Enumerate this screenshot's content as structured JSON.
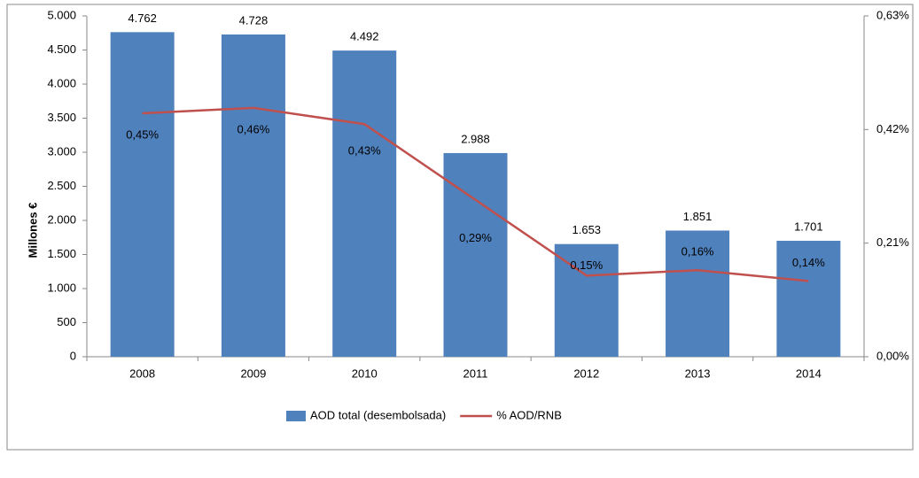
{
  "chart_data": {
    "type": "bar_line",
    "y_axis_label": "Millones €",
    "categories": [
      "2008",
      "2009",
      "2010",
      "2011",
      "2012",
      "2013",
      "2014"
    ],
    "series": [
      {
        "name": "AOD total (desembolsada)",
        "type": "bar",
        "color": "#4f81bd",
        "values": [
          4762,
          4728,
          4492,
          2988,
          1653,
          1851,
          1701
        ],
        "value_labels": [
          "4.762",
          "4.728",
          "4.492",
          "2.988",
          "1.653",
          "1.851",
          "1.701"
        ]
      },
      {
        "name": "% AOD/RNB",
        "type": "line",
        "axis": "y2",
        "color": "#c0504d",
        "values": [
          0.45,
          0.46,
          0.43,
          0.29,
          0.15,
          0.16,
          0.14
        ],
        "value_labels": [
          "0,45%",
          "0,46%",
          "0,43%",
          "0,29%",
          "0,15%",
          "0,16%",
          "0,14%"
        ]
      }
    ],
    "ylim": [
      0,
      5000
    ],
    "yticks": [
      0,
      500,
      {
        "value": 1000,
        "label": "1.000"
      },
      {
        "value": 1500,
        "label": "1.500"
      },
      {
        "value": 2000,
        "label": "2.000"
      },
      {
        "value": 2500,
        "label": "2.500"
      },
      {
        "value": 3000,
        "label": "3.000"
      },
      {
        "value": 3500,
        "label": "3.500"
      },
      {
        "value": 4000,
        "label": "4.000"
      },
      {
        "value": 4500,
        "label": "4.500"
      },
      {
        "value": 5000,
        "label": "5.000"
      }
    ],
    "y2lim": [
      0,
      0.63
    ],
    "y2ticks": [
      {
        "value": 0,
        "label": "0,00%"
      },
      {
        "value": 0.21,
        "label": "0,21%"
      },
      {
        "value": 0.42,
        "label": "0,42%"
      },
      {
        "value": 0.63,
        "label": "0,63%"
      }
    ],
    "legend": "bottom"
  }
}
